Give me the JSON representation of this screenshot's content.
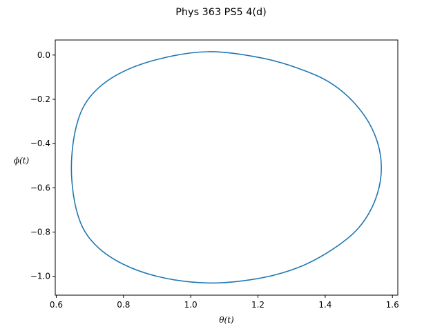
{
  "chart_data": {
    "type": "line",
    "title": "Phys 363 PS5 4(d)",
    "xlabel": "θ(t)",
    "ylabel": "ϕ(t)",
    "xlim": [
      0.597,
      1.616
    ],
    "ylim": [
      -1.085,
      0.068
    ],
    "xticks": [
      0.6,
      0.8,
      1.0,
      1.2,
      1.4,
      1.6
    ],
    "xtick_labels": [
      "0.6",
      "0.8",
      "1.0",
      "1.2",
      "1.4",
      "1.6"
    ],
    "yticks": [
      0.0,
      -0.2,
      -0.4,
      -0.6,
      -0.8,
      -1.0
    ],
    "ytick_labels": [
      "0.0",
      "−0.2",
      "−0.4",
      "−0.6",
      "−0.8",
      "−1.0"
    ],
    "grid": false,
    "legend": "none",
    "series": [
      {
        "color": "#1f77b4",
        "x": [
          1.05,
          1.2,
          1.32,
          1.42,
          1.5,
          1.55,
          1.567,
          1.55,
          1.5,
          1.42,
          1.32,
          1.2,
          1.05,
          0.9,
          0.78,
          0.7,
          0.66,
          0.645,
          0.66,
          0.7,
          0.78,
          0.9,
          1.05
        ],
        "y": [
          0.015,
          -0.01,
          -0.06,
          -0.13,
          -0.24,
          -0.37,
          -0.51,
          -0.65,
          -0.78,
          -0.88,
          -0.96,
          -1.01,
          -1.03,
          -1.0,
          -0.93,
          -0.83,
          -0.7,
          -0.51,
          -0.32,
          -0.19,
          -0.09,
          -0.02,
          0.015
        ]
      }
    ]
  }
}
